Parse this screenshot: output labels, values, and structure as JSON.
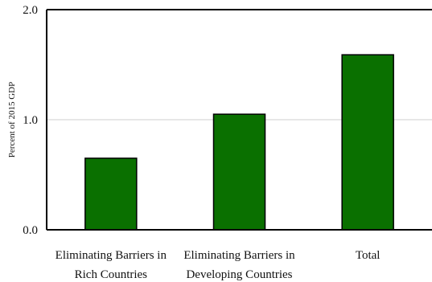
{
  "chart_data": {
    "type": "bar",
    "categories": [
      [
        "Eliminating Barriers in",
        "Rich Countries"
      ],
      [
        "Eliminating Barriers in",
        "Developing Countries"
      ],
      [
        "Total"
      ]
    ],
    "values": [
      0.65,
      1.05,
      1.59
    ],
    "ylabel": "Percent of 2015 GDP",
    "ylim": [
      0,
      2
    ],
    "yticks": [
      "0.0",
      "1.0",
      "2.0"
    ],
    "ytick_values": [
      0,
      1,
      2
    ],
    "grid": "horizontal at 1.0",
    "bar_color": "#0a7000",
    "bar_edge_color": "#000000"
  }
}
